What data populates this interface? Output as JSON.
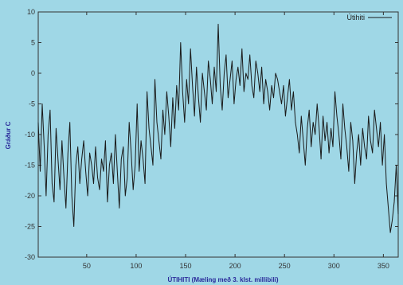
{
  "chart_data": {
    "type": "line",
    "xlabel": "ÚTIHITI (Mæling með 3. klst. millibili)",
    "ylabel": "Gráður C",
    "xlim": [
      1,
      365
    ],
    "ylim": [
      -30,
      10
    ],
    "xticks": [
      50,
      100,
      150,
      200,
      250,
      300,
      350
    ],
    "yticks": [
      -30,
      -25,
      -20,
      -15,
      -10,
      -5,
      0,
      5,
      10
    ],
    "grid": false,
    "legend_position": "top-right",
    "colors": {
      "background": "#9fd7e6",
      "line": "#1a1a1a",
      "frame": "#333333"
    },
    "series": [
      {
        "name": "Útihiti",
        "x": [
          1,
          3,
          5,
          7,
          9,
          11,
          13,
          15,
          17,
          19,
          21,
          23,
          25,
          27,
          29,
          31,
          33,
          35,
          37,
          39,
          41,
          43,
          45,
          47,
          49,
          51,
          53,
          55,
          57,
          59,
          61,
          63,
          65,
          67,
          69,
          71,
          73,
          75,
          77,
          79,
          81,
          83,
          85,
          87,
          89,
          91,
          93,
          95,
          97,
          99,
          101,
          103,
          105,
          107,
          109,
          111,
          113,
          115,
          117,
          119,
          121,
          123,
          125,
          127,
          129,
          131,
          133,
          135,
          137,
          139,
          141,
          143,
          145,
          147,
          149,
          151,
          153,
          155,
          157,
          159,
          161,
          163,
          165,
          167,
          169,
          171,
          173,
          175,
          177,
          179,
          181,
          183,
          185,
          187,
          189,
          191,
          193,
          195,
          197,
          199,
          201,
          203,
          205,
          207,
          209,
          211,
          213,
          215,
          217,
          219,
          221,
          223,
          225,
          227,
          229,
          231,
          233,
          235,
          237,
          239,
          241,
          243,
          245,
          247,
          249,
          251,
          253,
          255,
          257,
          259,
          261,
          263,
          265,
          267,
          269,
          271,
          273,
          275,
          277,
          279,
          281,
          283,
          285,
          287,
          289,
          291,
          293,
          295,
          297,
          299,
          301,
          303,
          305,
          307,
          309,
          311,
          313,
          315,
          317,
          319,
          321,
          323,
          325,
          327,
          329,
          331,
          333,
          335,
          337,
          339,
          341,
          343,
          345,
          347,
          349,
          351,
          353,
          355,
          357,
          359,
          361,
          363,
          365
        ],
        "values": [
          -8,
          -16,
          -5,
          -12,
          -20,
          -10,
          -6,
          -18,
          -21,
          -9,
          -14,
          -19,
          -11,
          -17,
          -22,
          -13,
          -8,
          -20,
          -25,
          -15,
          -12,
          -18,
          -14,
          -11,
          -16,
          -20,
          -13,
          -15,
          -18,
          -12,
          -17,
          -19,
          -14,
          -16,
          -11,
          -21,
          -15,
          -13,
          -18,
          -10,
          -16,
          -22,
          -14,
          -12,
          -20,
          -17,
          -8,
          -13,
          -19,
          -15,
          -5,
          -16,
          -11,
          -14,
          -18,
          -3,
          -9,
          -12,
          -15,
          -1,
          -8,
          -11,
          -14,
          -6,
          -10,
          -3,
          -7,
          -12,
          -4,
          -9,
          -2,
          -6,
          5,
          -3,
          -8,
          -1,
          -5,
          4,
          -2,
          -7,
          1,
          -4,
          -8,
          0,
          -3,
          -6,
          2,
          -1,
          -5,
          1,
          -3,
          8,
          -2,
          -6,
          0,
          3,
          -4,
          -1,
          2,
          -5,
          -1,
          1,
          -2,
          4,
          -3,
          0,
          -1,
          3,
          -2,
          -4,
          2,
          0,
          -3,
          1,
          -5,
          -1,
          -3,
          -6,
          -2,
          -4,
          0,
          -1,
          -3,
          -5,
          -2,
          -7,
          -4,
          -1,
          -6,
          -3,
          -8,
          -10,
          -13,
          -7,
          -11,
          -15,
          -9,
          -6,
          -12,
          -8,
          -10,
          -5,
          -9,
          -14,
          -7,
          -11,
          -8,
          -13,
          -9,
          -12,
          -3,
          -7,
          -10,
          -14,
          -5,
          -9,
          -12,
          -16,
          -8,
          -11,
          -18,
          -13,
          -10,
          -15,
          -9,
          -12,
          -14,
          -7,
          -11,
          -13,
          -6,
          -9,
          -12,
          -8,
          -15,
          -10,
          -18,
          -22,
          -26,
          -24,
          -21,
          -15,
          -23
        ]
      }
    ]
  }
}
